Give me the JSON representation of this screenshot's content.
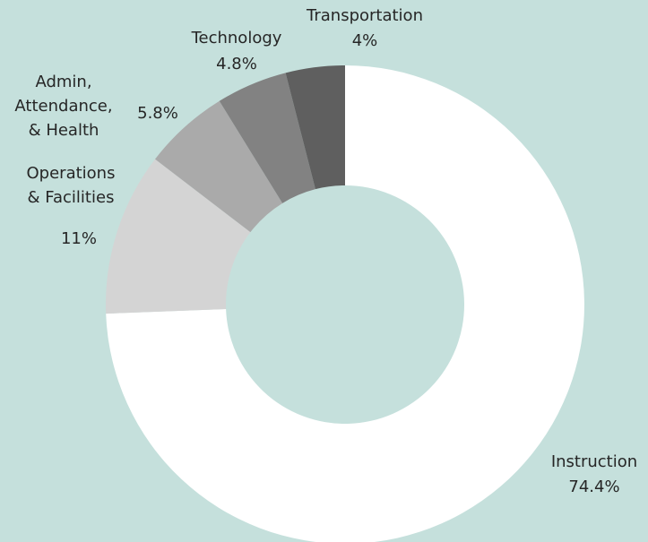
{
  "chart_data": {
    "type": "donut",
    "categories": [
      "Instruction",
      "Operations & Facilities",
      "Admin, Attendance, & Health",
      "Technology",
      "Transportation"
    ],
    "values": [
      74.4,
      11,
      5.8,
      4.8,
      4
    ],
    "value_labels": [
      "74.4%",
      "11%",
      "5.8%",
      "4.8%",
      "4%"
    ],
    "colors": [
      "#ffffff",
      "#d4d4d4",
      "#aaaaaa",
      "#828282",
      "#5f5f5f"
    ],
    "background": "#c5e0dc"
  }
}
